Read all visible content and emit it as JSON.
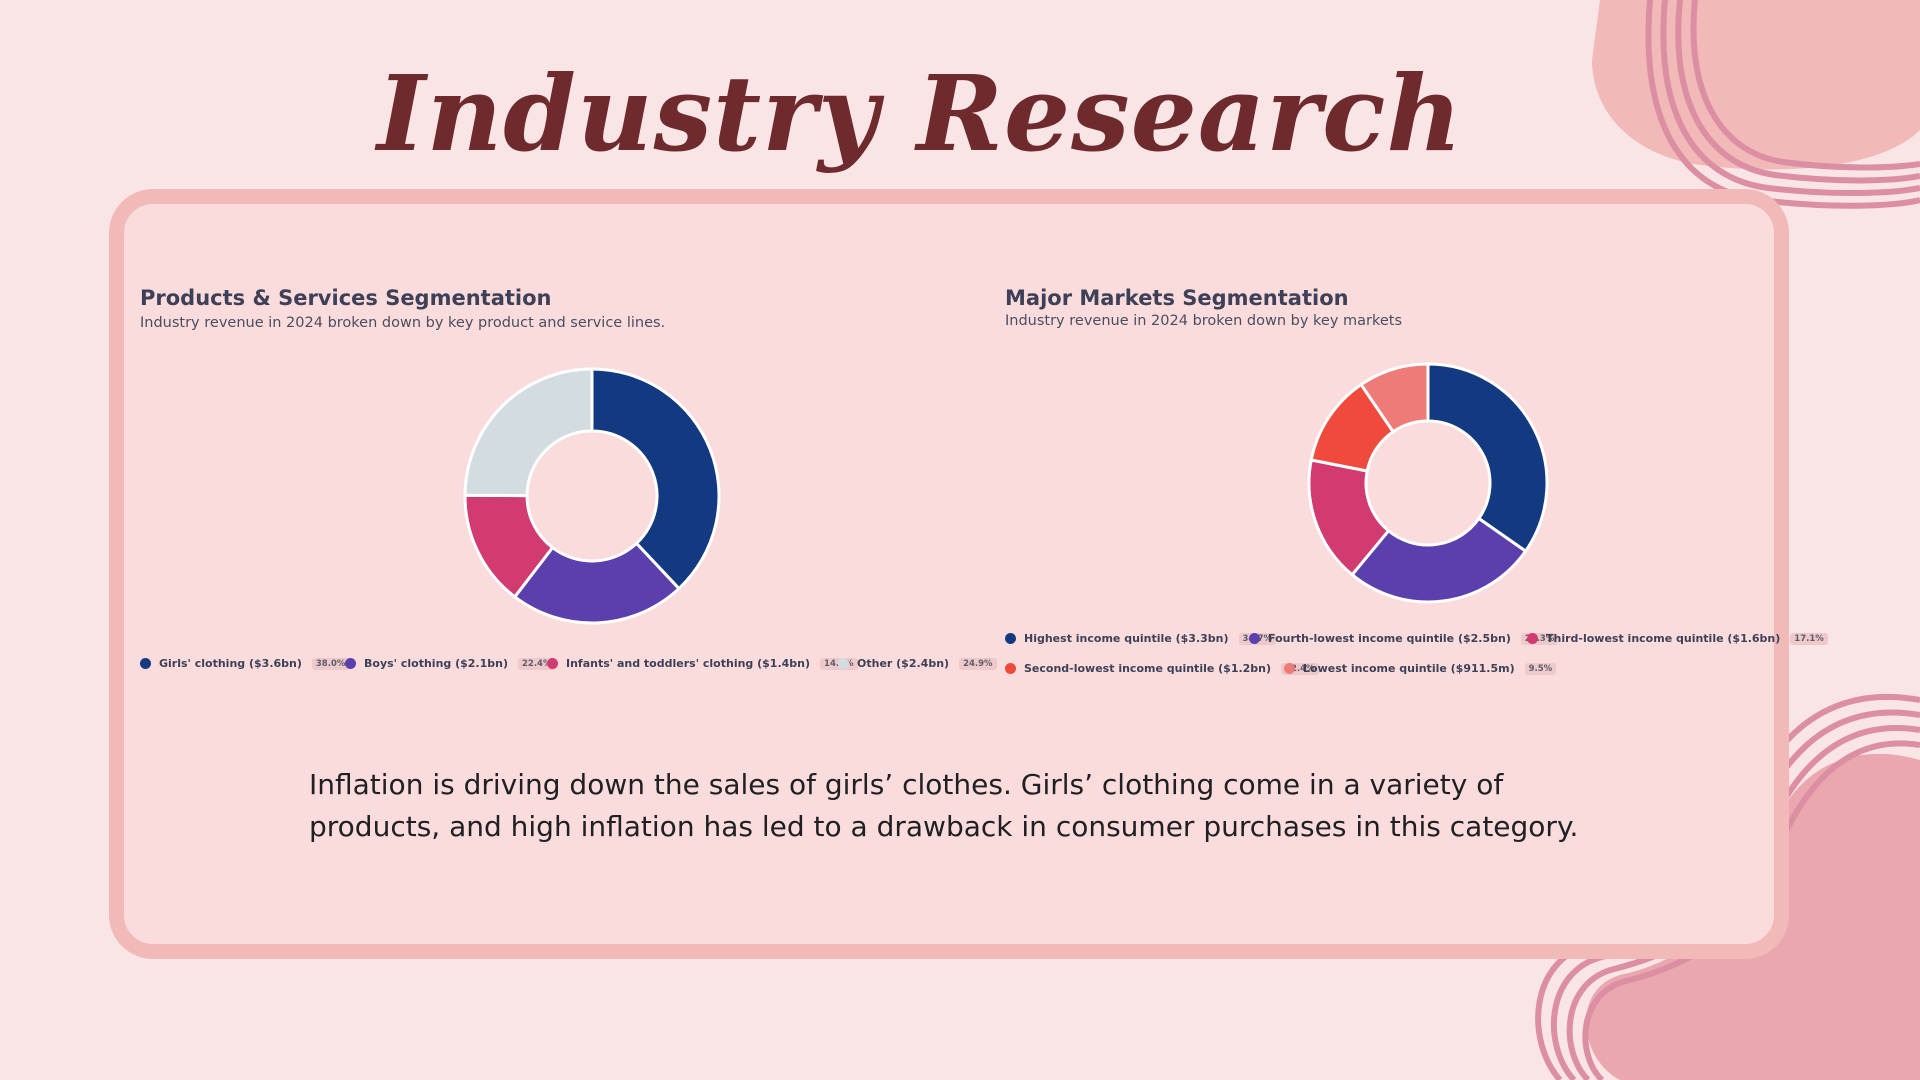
{
  "title": "Industry Research",
  "body_text_line1": "Inflation is driving down the sales of girls’ clothes. Girls’ clothing come in a variety of",
  "body_text_line2": "products, and high inflation has led to a drawback in consumer purchases in this category.",
  "colors": {
    "background": "#f9e5e5",
    "frame_border": "#f2b9b9",
    "frame_fill": "#fbdcdc",
    "title": "#6e2a2c",
    "decor_blob": "#f2b9b9",
    "decor_lines": "#dc8ea2"
  },
  "chart_data": [
    {
      "type": "pie",
      "title": "Products & Services Segmentation",
      "subtitle": "Industry revenue in 2024 broken down by key product and service lines.",
      "slices": [
        {
          "label": "Girls' clothing ($3.6bn)",
          "value": 38.0,
          "pct": "38.0%",
          "color": "#133a80"
        },
        {
          "label": "Boys' clothing ($2.1bn)",
          "value": 22.4,
          "pct": "22.4%",
          "color": "#5a3fad"
        },
        {
          "label": "Infants' and toddlers' clothing ($1.4bn)",
          "value": 14.7,
          "pct": "14.7%",
          "color": "#d23a72"
        },
        {
          "label": "Other ($2.4bn)",
          "value": 24.9,
          "pct": "24.9%",
          "color": "#d3dde1"
        }
      ]
    },
    {
      "type": "pie",
      "title": "Major Markets Segmentation",
      "subtitle": "Industry revenue in 2024 broken down by key markets",
      "slices": [
        {
          "label": "Highest income quintile ($3.3bn)",
          "value": 34.7,
          "pct": "34.7%",
          "color": "#133a80"
        },
        {
          "label": "Fourth-lowest income quintile ($2.5bn)",
          "value": 26.3,
          "pct": "26.3%",
          "color": "#5a3fad"
        },
        {
          "label": "Third-lowest income quintile ($1.6bn)",
          "value": 17.1,
          "pct": "17.1%",
          "color": "#d23a72"
        },
        {
          "label": "Second-lowest income quintile ($1.2bn)",
          "value": 12.4,
          "pct": "12.4%",
          "color": "#f04a3c"
        },
        {
          "label": "Lowest income quintile ($911.5m)",
          "value": 9.5,
          "pct": "9.5%",
          "color": "#ee7b78"
        }
      ]
    }
  ]
}
